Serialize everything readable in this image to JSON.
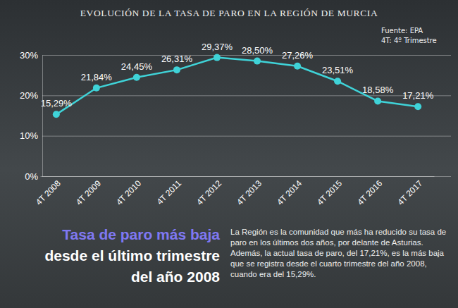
{
  "chart_data": {
    "type": "line",
    "title": "EVOLUCIÓN DE LA TASA DE PARO EN LA REGIÓN DE MURCIA",
    "source": "Fuente: EPA",
    "note": "4T: 4º Trimestre",
    "categories": [
      "4T 2008",
      "4T 2009",
      "4T 2010",
      "4T 2011",
      "4T 2012",
      "4T 2013",
      "4T 2014",
      "4T 2015",
      "4T 2016",
      "4T 2017"
    ],
    "values": [
      15.29,
      21.84,
      24.45,
      26.31,
      29.37,
      28.5,
      27.26,
      23.51,
      18.58,
      17.21
    ],
    "value_labels": [
      "15,29%",
      "21,84%",
      "24,45%",
      "26,31%",
      "29,37%",
      "28,50%",
      "27,26%",
      "23,51%",
      "18,58%",
      "17,21%"
    ],
    "color": "#3fd3d8",
    "marker": "circle",
    "data_labels": true,
    "grid": true,
    "ylim": [
      0,
      30
    ],
    "yticks": [
      {
        "value": 0,
        "label": "0%"
      },
      {
        "value": 10,
        "label": "10%"
      },
      {
        "value": 20,
        "label": "20%"
      },
      {
        "value": 30,
        "label": "30%"
      }
    ],
    "headline": [
      "Tasa de paro más baja",
      "desde el último trimestre",
      "del año 2008"
    ],
    "description": "La Región es la comunidad que más ha reducido su tasa de paro en los últimos dos años, por delante de Asturias. Además, la actual tasa de paro, del 17,21%, es la más baja que se registra desde el cuarto trimestre del año 2008, cuando era del 15,29%."
  }
}
